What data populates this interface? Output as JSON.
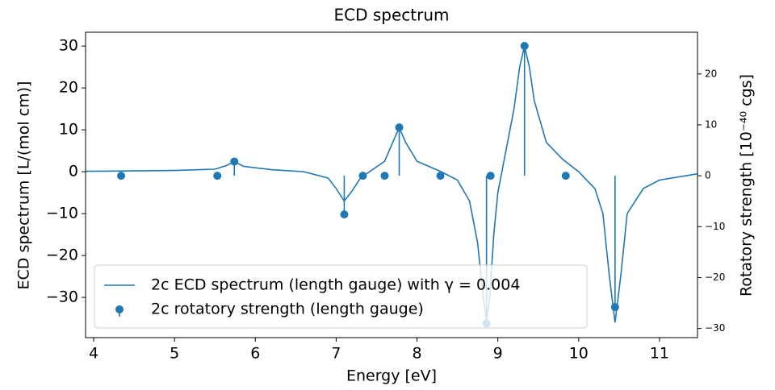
{
  "chart_data": {
    "type": "line",
    "title": "ECD spectrum",
    "xlabel": "Energy [eV]",
    "ylabel": "ECD spectrum [L/(mol cm)]",
    "y2label": "Rotatory strength [10⁻⁴⁰ cgs]",
    "xlim": [
      3.9,
      11.47
    ],
    "ylim": [
      -39.6,
      33.3
    ],
    "y2lim": [
      -31.8,
      28.2
    ],
    "xticks": [
      4,
      5,
      6,
      7,
      8,
      9,
      10,
      11
    ],
    "yticks": [
      {
        "value": -30,
        "label": "−30"
      },
      {
        "value": -20,
        "label": "−20"
      },
      {
        "value": -10,
        "label": "−10"
      },
      0,
      10,
      20,
      30
    ],
    "y2ticks": [
      {
        "value": -30,
        "label": "−30"
      },
      {
        "value": -20,
        "label": "−20"
      },
      {
        "value": -10,
        "label": "−10"
      },
      0,
      10,
      20
    ],
    "legend": "lower left",
    "series": [
      {
        "name": "2c ECD spectrum (length gauge) with γ = 0.004",
        "color": "#1f77b4",
        "type": "line",
        "x": [
          3.9,
          5.0,
          5.5,
          5.65,
          5.74,
          5.85,
          6.2,
          6.6,
          6.9,
          7.0,
          7.1,
          7.2,
          7.3,
          7.45,
          7.6,
          7.7,
          7.78,
          7.86,
          8.0,
          8.3,
          8.5,
          8.65,
          8.75,
          8.82,
          8.86,
          8.9,
          8.95,
          9.0,
          9.1,
          9.2,
          9.27,
          9.33,
          9.39,
          9.45,
          9.6,
          9.8,
          10.0,
          10.2,
          10.3,
          10.38,
          10.45,
          10.52,
          10.6,
          10.8,
          11.0,
          11.47
        ],
        "values": [
          0.1,
          0.3,
          0.6,
          1.5,
          2.5,
          1.3,
          0.5,
          0,
          -1.5,
          -4,
          -7,
          -4.5,
          -1.5,
          0.5,
          2.5,
          7,
          10.5,
          7,
          2.5,
          0,
          -2,
          -7,
          -17,
          -30,
          -35.6,
          -30,
          -15,
          -5,
          5,
          15,
          25,
          30,
          25,
          17,
          7,
          3,
          0,
          -4,
          -10,
          -25,
          -36,
          -25,
          -10,
          -4,
          -2,
          -0.5
        ]
      },
      {
        "name": "2c rotatory strength (length gauge)",
        "color": "#1f77b4",
        "type": "stem",
        "axis": "y2",
        "x": [
          4.34,
          5.53,
          5.74,
          7.1,
          7.33,
          7.6,
          7.78,
          8.29,
          8.86,
          8.91,
          9.33,
          9.84,
          10.45
        ],
        "values": [
          0,
          0,
          2.8,
          -7.6,
          0,
          0,
          9.5,
          0,
          -29,
          0,
          25.5,
          0,
          -25.8
        ]
      }
    ]
  }
}
